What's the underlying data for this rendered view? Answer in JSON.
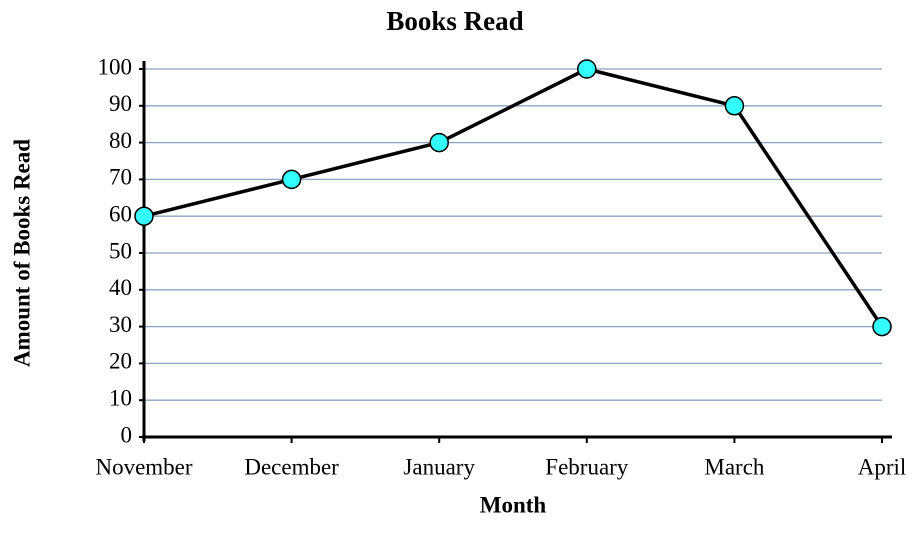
{
  "chart_data": {
    "type": "line",
    "title": "Books Read",
    "x_label": "Month",
    "y_label": "Amount of Books Read",
    "categories": [
      "November",
      "December",
      "January",
      "February",
      "March",
      "April"
    ],
    "series": [
      {
        "name": "Books Read",
        "color": "#000000",
        "marker_color": "#33ffff",
        "values": [
          60,
          70,
          80,
          100,
          90,
          30
        ]
      }
    ],
    "ylim": [
      0,
      100
    ],
    "yticks": [
      0,
      10,
      20,
      30,
      40,
      50,
      60,
      70,
      80,
      90,
      100
    ],
    "grid": true,
    "grid_color": "#8ca3bd"
  }
}
